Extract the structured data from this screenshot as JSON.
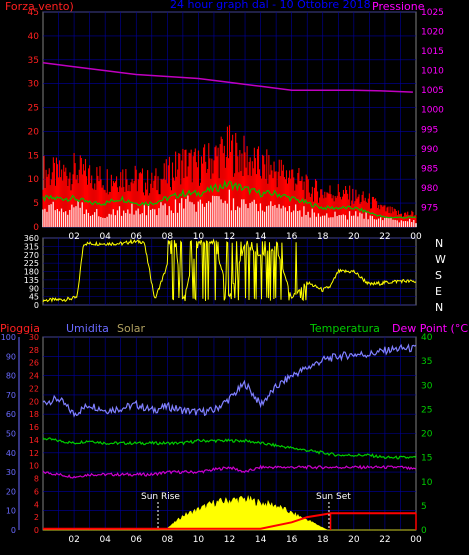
{
  "header": {
    "wind_label": "Forza vento)",
    "title": "24 hour graph dal - 10 Ottobre 2018",
    "pressure_label": "Pressione"
  },
  "bottom_header": {
    "rain_label": "Pioggia",
    "humidity_label": "Umidita",
    "solar_label": "Solar",
    "temperature_label": "Temperatura",
    "dewpoint_label": "Dew Point (°C)"
  },
  "annotations": {
    "sunrise": "Sun Rise",
    "sunset": "Sun Set"
  },
  "compass": [
    "N",
    "W",
    "S",
    "E",
    "N"
  ],
  "colors": {
    "wind_gust": "#ff0000",
    "wind_avg": "#00c000",
    "wind_low": "#ffffff",
    "pressure": "#c000c0",
    "direction": "#ffff00",
    "humidity": "#8080ff",
    "temperature": "#00cc00",
    "dewpoint": "#cc00cc",
    "rain": "#ff0000",
    "solar": "#ffff00",
    "grid": "#0000a0",
    "axis_left": "#ff2020",
    "axis_right": "#ff00ff",
    "axis_green": "#00cc00",
    "axis_blue": "#6a6aff"
  },
  "chart_data": [
    {
      "type": "area",
      "title": "24 hour graph dal - 10 Ottobre 2018",
      "x_ticks": [
        "02",
        "04",
        "06",
        "08",
        "10",
        "12",
        "14",
        "16",
        "18",
        "20",
        "22",
        "00"
      ],
      "x_range_hours": [
        0,
        24
      ],
      "y_left_label": "Forza vento)",
      "y_left_range": [
        0,
        45
      ],
      "y_left_ticks": [
        "0",
        "5",
        "10",
        "15",
        "20",
        "25",
        "30",
        "35",
        "40",
        "45"
      ],
      "y_right_label": "Pressione",
      "y_right_range": [
        970,
        1025
      ],
      "y_right_ticks": [
        "975",
        "980",
        "985",
        "990",
        "995",
        "1000",
        "1005",
        "1010",
        "1015",
        "1020",
        "1025"
      ],
      "grid": true,
      "series": [
        {
          "name": "gust",
          "x": [
            0,
            1,
            2,
            3,
            4,
            5,
            6,
            7,
            8,
            9,
            10,
            11,
            12,
            13,
            14,
            15,
            16,
            17,
            18,
            19,
            20,
            21,
            22,
            23,
            24
          ],
          "values": [
            13,
            12,
            13,
            12,
            11,
            12,
            11,
            10,
            12,
            15,
            14,
            16,
            18,
            16,
            14,
            13,
            12,
            9,
            8,
            8,
            7,
            6,
            4,
            3,
            3
          ]
        },
        {
          "name": "avg",
          "x": [
            0,
            1,
            2,
            3,
            4,
            5,
            6,
            7,
            8,
            9,
            10,
            11,
            12,
            13,
            14,
            15,
            16,
            17,
            18,
            19,
            20,
            21,
            22,
            23,
            24
          ],
          "values": [
            6,
            6,
            6,
            5,
            5,
            6,
            5,
            5,
            6,
            7,
            7,
            8,
            9,
            8,
            7,
            7,
            6,
            5,
            4,
            4,
            4,
            3,
            2,
            2,
            2
          ]
        },
        {
          "name": "pressure",
          "x": [
            0,
            2,
            4,
            6,
            8,
            10,
            12,
            14,
            16,
            18,
            20,
            22,
            23.8
          ],
          "values": [
            1012,
            1011,
            1010,
            1009,
            1008.5,
            1008,
            1007,
            1006,
            1005,
            1005,
            1005,
            1004.8,
            1004.5
          ]
        }
      ]
    },
    {
      "type": "line",
      "x_ticks": [
        "02",
        "04",
        "06",
        "08",
        "10",
        "12",
        "14",
        "16",
        "18",
        "20",
        "22",
        "00"
      ],
      "y_left_range": [
        0,
        360
      ],
      "y_left_ticks": [
        "0",
        "45",
        "90",
        "135",
        "180",
        "225",
        "270",
        "315",
        "360"
      ],
      "y_right_labels": [
        "N",
        "W",
        "S",
        "E",
        "N"
      ],
      "series": [
        {
          "name": "direction",
          "x": [
            0,
            1.5,
            2.2,
            2.6,
            3.2,
            5.2,
            5.6,
            6.5,
            7.2,
            8.5,
            9,
            10,
            11,
            12,
            13,
            14,
            15,
            16,
            17,
            18,
            18.5,
            19,
            20,
            21,
            22,
            23,
            24
          ],
          "values": [
            25,
            30,
            40,
            330,
            330,
            330,
            340,
            340,
            30,
            330,
            20,
            330,
            340,
            40,
            330,
            260,
            310,
            40,
            120,
            80,
            100,
            180,
            180,
            110,
            120,
            130,
            125
          ]
        }
      ]
    },
    {
      "type": "line",
      "x_ticks": [
        "02",
        "04",
        "06",
        "08",
        "10",
        "12",
        "14",
        "16",
        "18",
        "20",
        "22",
        "00"
      ],
      "y_rain_range": [
        0,
        30
      ],
      "y_rain_ticks": [
        "0",
        "2",
        "4",
        "6",
        "8",
        "10",
        "12",
        "14",
        "16",
        "18",
        "20",
        "22",
        "24",
        "26",
        "28",
        "30"
      ],
      "y_humidity_range": [
        0,
        100
      ],
      "y_humidity_ticks": [
        "0",
        "10",
        "20",
        "30",
        "40",
        "50",
        "60",
        "70",
        "80",
        "90",
        "100"
      ],
      "y_temp_range": [
        0,
        40
      ],
      "y_temp_ticks": [
        "0",
        "5",
        "10",
        "15",
        "20",
        "25",
        "30",
        "35",
        "40"
      ],
      "series": [
        {
          "name": "humidity",
          "x": [
            0,
            1,
            2,
            3,
            4,
            5,
            6,
            7,
            8,
            9,
            10,
            11,
            12,
            13,
            14,
            15,
            16,
            17,
            18,
            19,
            20,
            21,
            22,
            23,
            24
          ],
          "values": [
            66,
            68,
            60,
            65,
            62,
            63,
            65,
            62,
            64,
            62,
            61,
            62,
            68,
            76,
            65,
            74,
            80,
            84,
            88,
            90,
            91,
            91,
            93,
            94,
            94
          ]
        },
        {
          "name": "temperature",
          "x": [
            0,
            1,
            2,
            3,
            4,
            5,
            6,
            7,
            8,
            9,
            10,
            11,
            12,
            13,
            14,
            15,
            16,
            17,
            18,
            19,
            20,
            21,
            22,
            23,
            24
          ],
          "values": [
            19,
            18.5,
            18,
            18.5,
            18,
            18,
            18,
            18,
            18,
            18,
            18.5,
            18.5,
            18.5,
            18.5,
            18,
            17.5,
            17,
            16.5,
            16,
            15.5,
            15.5,
            15.5,
            15,
            15,
            15
          ]
        },
        {
          "name": "dewpoint",
          "x": [
            0,
            1,
            2,
            3,
            4,
            5,
            6,
            7,
            8,
            9,
            10,
            11,
            12,
            13,
            14,
            15,
            16,
            17,
            18,
            19,
            20,
            21,
            22,
            23,
            24
          ],
          "values": [
            12,
            11.5,
            11,
            11.5,
            11.5,
            11.5,
            11.5,
            11.5,
            12,
            12,
            12,
            12.5,
            13,
            12,
            13,
            13,
            13,
            13,
            13,
            13,
            13,
            13,
            13,
            13,
            12.5
          ]
        },
        {
          "name": "solar",
          "x": [
            0,
            7.5,
            8,
            8.5,
            9,
            10,
            11,
            12,
            13,
            14,
            15,
            16,
            17,
            18.3,
            19,
            24
          ],
          "values": [
            0,
            0,
            0.3,
            1.2,
            2.2,
            3.2,
            4.2,
            4.6,
            4.8,
            4.2,
            3.8,
            2.6,
            1.6,
            0,
            0,
            0
          ]
        },
        {
          "name": "rain",
          "x": [
            0,
            14,
            16,
            17,
            18,
            18.5,
            24
          ],
          "values": [
            0.2,
            0.2,
            1.2,
            2.0,
            2.4,
            2.6,
            2.6
          ]
        }
      ]
    }
  ]
}
